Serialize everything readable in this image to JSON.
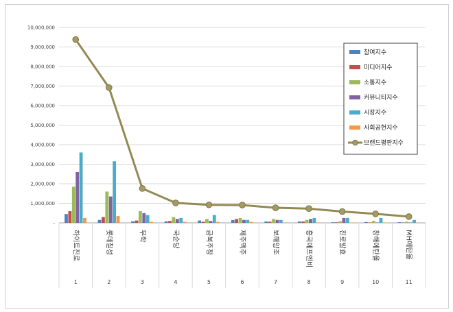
{
  "chart_data": {
    "type": "bar",
    "categories": [
      "하이트진로",
      "롯데칠성",
      "무학",
      "국순당",
      "금복주정",
      "제주맥주",
      "보해양조",
      "흥국에프엔비",
      "진로발효",
      "창해에탄올",
      "MH에탄올"
    ],
    "category_indices": [
      "1",
      "2",
      "3",
      "4",
      "5",
      "6",
      "7",
      "8",
      "9",
      "10",
      "11"
    ],
    "ylim": [
      0,
      10000000
    ],
    "yticks": [
      "-",
      "1,000,000",
      "2,000,000",
      "3,000,000",
      "4,000,000",
      "5,000,000",
      "6,000,000",
      "7,000,000",
      "8,000,000",
      "9,000,000",
      "10,000,000"
    ],
    "grid": true,
    "legend_position": "right",
    "series": [
      {
        "name": "참여지수",
        "color": "#4f81bd",
        "values": [
          450000,
          150000,
          80000,
          80000,
          120000,
          140000,
          70000,
          70000,
          30000,
          40000,
          30000
        ]
      },
      {
        "name": "미디어지수",
        "color": "#c0504d",
        "values": [
          600000,
          300000,
          120000,
          100000,
          60000,
          200000,
          60000,
          70000,
          30000,
          20000,
          20000
        ]
      },
      {
        "name": "소통지수",
        "color": "#9bbb59",
        "values": [
          1850000,
          1600000,
          600000,
          300000,
          200000,
          250000,
          200000,
          150000,
          80000,
          100000,
          60000
        ]
      },
      {
        "name": "커뮤니티지수",
        "color": "#8064a2",
        "values": [
          2600000,
          1350000,
          500000,
          200000,
          100000,
          150000,
          150000,
          200000,
          250000,
          20000,
          20000
        ]
      },
      {
        "name": "시장지수",
        "color": "#4bacc6",
        "values": [
          3600000,
          3150000,
          400000,
          250000,
          400000,
          150000,
          150000,
          250000,
          250000,
          250000,
          150000
        ]
      },
      {
        "name": "사회공헌지수",
        "color": "#f79646",
        "values": [
          250000,
          350000,
          50000,
          50000,
          50000,
          50000,
          20000,
          20000,
          20000,
          20000,
          20000
        ]
      }
    ],
    "line": {
      "name": "브랜드평판지수",
      "color": "#938953",
      "values": [
        9380000,
        6920000,
        1760000,
        1020000,
        920000,
        910000,
        770000,
        730000,
        580000,
        460000,
        320000
      ]
    }
  }
}
